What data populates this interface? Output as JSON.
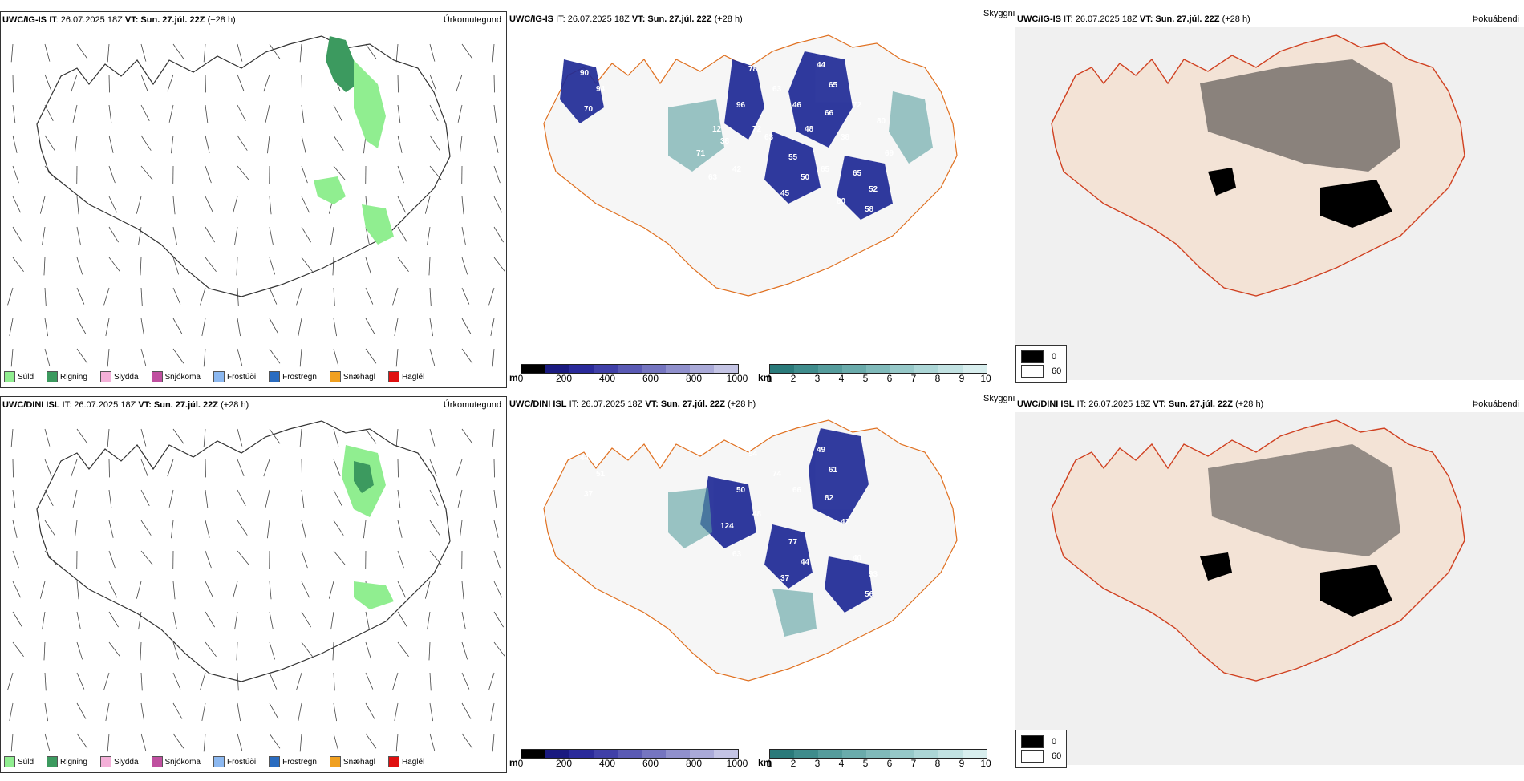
{
  "rows": [
    {
      "model": "UWC/IG-IS",
      "it": "IT: 26.07.2025 18Z",
      "vt_label": "VT:",
      "vt": "Sun. 27.júl. 22Z",
      "lead": "(+28 h)",
      "precip_title": "Úrkomutegund",
      "cloud_title": "Skyggni",
      "fog_title": "Þokuábendi",
      "cloud_labels": [
        "90",
        "94",
        "70",
        "78",
        "96",
        "72",
        "44",
        "65",
        "66",
        "38",
        "55",
        "50",
        "45",
        "65",
        "52",
        "58",
        "38",
        "42",
        "63",
        "46",
        "48",
        "63",
        "65",
        "80",
        "72",
        "80",
        "69",
        "71",
        "63",
        "12"
      ]
    },
    {
      "model": "UWC/DINI ISL",
      "it": "IT: 26.07.2025 18Z",
      "vt_label": "VT:",
      "vt": "Sun. 27.júl. 22Z",
      "lead": "(+28 h)",
      "precip_title": "Úrkomutegund",
      "cloud_title": "Skyggni",
      "fog_title": "Þokuábendi",
      "cloud_labels": [
        "44",
        "51",
        "37",
        "54",
        "50",
        "48",
        "49",
        "61",
        "82",
        "42",
        "77",
        "44",
        "37",
        "40",
        "93",
        "56",
        "124",
        "63",
        "74",
        "66"
      ]
    }
  ],
  "precip_legend": [
    {
      "label": "Súld",
      "color": "#90ee90"
    },
    {
      "label": "Rigning",
      "color": "#3c9a5f"
    },
    {
      "label": "Slydda",
      "color": "#f4b0d8"
    },
    {
      "label": "Snjókoma",
      "color": "#c050a0"
    },
    {
      "label": "Frostúði",
      "color": "#8cb8f0"
    },
    {
      "label": "Frostregn",
      "color": "#2a6cc0"
    },
    {
      "label": "Snæhagl",
      "color": "#f0a020"
    },
    {
      "label": "Haglél",
      "color": "#e01010"
    }
  ],
  "cbar_m": {
    "unit": "m",
    "ticks": [
      "0",
      "200",
      "400",
      "600",
      "800",
      "1000"
    ],
    "colors": [
      "#000000",
      "#1a1a80",
      "#2a2a9a",
      "#4040a8",
      "#5a5ab4",
      "#7575c0",
      "#9090cc",
      "#aaaad8",
      "#c4c4e4"
    ]
  },
  "cbar_km": {
    "unit": "km",
    "ticks": [
      "1",
      "2",
      "3",
      "4",
      "5",
      "6",
      "7",
      "8",
      "9",
      "10"
    ],
    "colors": [
      "#2a7a7a",
      "#3f8c8c",
      "#559c9c",
      "#6aabab",
      "#80baba",
      "#96c8c8",
      "#acd6d6",
      "#c2e2e2",
      "#d8eeee"
    ]
  },
  "fog_legend": [
    {
      "label": "0",
      "color": "#000000"
    },
    {
      "label": "60",
      "color": "#ffffff"
    }
  ]
}
